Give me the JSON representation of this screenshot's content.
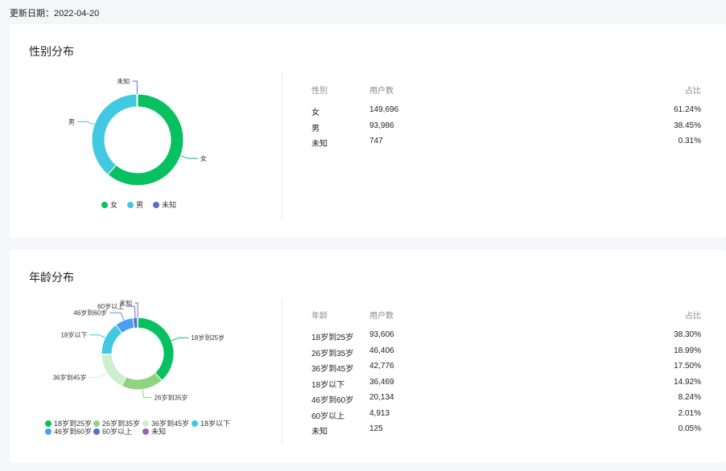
{
  "update": {
    "label": "更新日期：",
    "date": "2022-04-20"
  },
  "table_headers": {
    "gender_col": "性别",
    "age_col": "年龄",
    "users": "用户数",
    "ratio": "占比"
  },
  "chart_data": [
    {
      "type": "pie",
      "title": "性别分布",
      "categories": [
        "女",
        "男",
        "未知"
      ],
      "users": [
        "149,696",
        "93,986",
        "747"
      ],
      "percents": [
        "61.24%",
        "38.45%",
        "0.31%"
      ],
      "values": [
        61.24,
        38.45,
        0.31
      ],
      "colors": [
        "#07c160",
        "#40c9e0",
        "#5470c6"
      ],
      "legend_position": "bottom"
    },
    {
      "type": "pie",
      "title": "年龄分布",
      "categories": [
        "18岁到25岁",
        "26岁到35岁",
        "36岁到45岁",
        "18岁以下",
        "46岁到60岁",
        "60岁以上",
        "未知"
      ],
      "users": [
        "93,606",
        "46,406",
        "42,776",
        "36,469",
        "20,134",
        "4,913",
        "125"
      ],
      "percents": [
        "38.30%",
        "18.99%",
        "17.50%",
        "14.92%",
        "8.24%",
        "2.01%",
        "0.05%"
      ],
      "values": [
        38.3,
        18.99,
        17.5,
        14.92,
        8.24,
        2.01,
        0.05
      ],
      "colors": [
        "#07c160",
        "#91d47f",
        "#cdeecf",
        "#40c9e0",
        "#4a9ff5",
        "#5470c6",
        "#9a60b4"
      ],
      "legend_position": "bottom"
    }
  ]
}
